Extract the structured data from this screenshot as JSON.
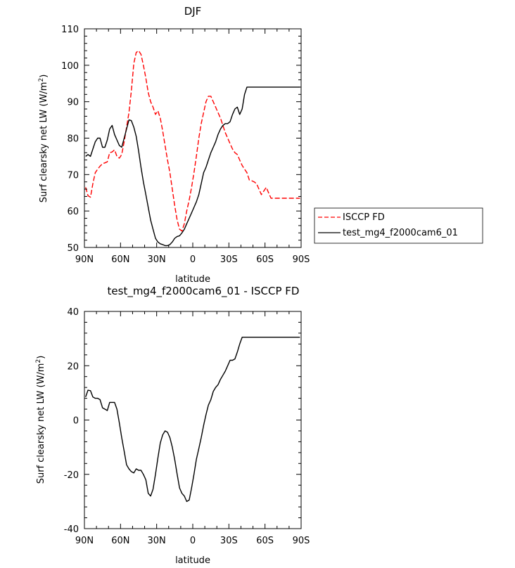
{
  "chart_data": [
    {
      "type": "line",
      "title": "DJF",
      "xlabel": "latitude",
      "ylabel": "Surf clearsky net LW (W/m",
      "ylabel_sup": "2",
      "ylabel_end": ")",
      "xlim": [
        90,
        -90
      ],
      "ylim": [
        50,
        110
      ],
      "x_ticks": [
        90,
        60,
        30,
        0,
        -30,
        -60,
        -90
      ],
      "x_tick_labels": [
        "90N",
        "60N",
        "30N",
        "0",
        "30S",
        "60S",
        "90S"
      ],
      "y_ticks": [
        50,
        60,
        70,
        80,
        90,
        100,
        110
      ],
      "y_tick_labels": [
        "50",
        "60",
        "70",
        "80",
        "90",
        "100",
        "110"
      ],
      "legend_position": "right",
      "series": [
        {
          "name": "ISCCP FD",
          "color": "#ff0000",
          "dash": "dashed",
          "x": [
            89,
            87,
            85,
            83,
            81,
            79,
            77,
            75,
            73,
            71,
            69,
            67,
            65,
            63,
            61,
            59,
            57,
            55,
            53,
            51,
            49,
            47,
            45,
            43,
            41,
            39,
            37,
            35,
            33,
            31,
            29,
            27,
            25,
            23,
            21,
            19,
            17,
            15,
            13,
            11,
            9,
            7,
            5,
            3,
            1,
            -1,
            -3,
            -5,
            -7,
            -9,
            -11,
            -13,
            -15,
            -17,
            -19,
            -21,
            -23,
            -25,
            -27,
            -29,
            -31,
            -33,
            -35,
            -37,
            -39,
            -41,
            -43,
            -45,
            -47,
            -49,
            -51,
            -53,
            -55,
            -57,
            -59,
            -61,
            -63,
            -65,
            -67,
            -69,
            -71,
            -73,
            -75,
            -77,
            -79,
            -81,
            -83,
            -85,
            -87,
            -89
          ],
          "y": [
            66.5,
            64.2,
            63.8,
            67.5,
            70.5,
            71.5,
            72.3,
            73.0,
            73.2,
            73.5,
            76.0,
            76.2,
            76.8,
            75.0,
            74.5,
            75.5,
            79.0,
            83.0,
            87.0,
            93.0,
            100.5,
            103.5,
            104.0,
            103.0,
            100.0,
            96.5,
            92.5,
            90.0,
            88.5,
            86.5,
            87.5,
            85.5,
            82.0,
            78.0,
            74.0,
            70.5,
            66.0,
            61.5,
            57.5,
            55.0,
            54.5,
            56.5,
            60.0,
            63.0,
            66.5,
            70.5,
            75.0,
            80.0,
            84.0,
            87.0,
            90.0,
            91.5,
            91.5,
            90.0,
            88.5,
            87.0,
            85.5,
            83.5,
            81.5,
            80.0,
            78.5,
            77.0,
            76.0,
            75.5,
            74.0,
            72.5,
            71.5,
            70.5,
            68.5,
            68.3,
            68.0,
            67.5,
            66.0,
            64.5,
            65.5,
            66.5,
            65.0,
            63.5,
            63.5,
            63.5,
            63.5,
            63.5,
            63.5,
            63.5,
            63.5,
            63.5,
            63.5,
            63.5,
            63.5,
            63.5
          ]
        },
        {
          "name": "test_mg4_f2000cam6_01",
          "color": "#000000",
          "dash": "solid",
          "x": [
            89,
            87,
            85,
            83,
            81,
            79,
            77,
            75,
            73,
            71,
            69,
            67,
            65,
            63,
            61,
            59,
            57,
            55,
            53,
            51,
            49,
            47,
            45,
            43,
            41,
            39,
            37,
            35,
            33,
            31,
            29,
            27,
            25,
            23,
            21,
            19,
            17,
            15,
            13,
            11,
            9,
            7,
            5,
            3,
            1,
            -1,
            -3,
            -5,
            -7,
            -9,
            -11,
            -13,
            -15,
            -17,
            -19,
            -21,
            -23,
            -25,
            -27,
            -29,
            -31,
            -33,
            -35,
            -37,
            -39,
            -41,
            -43,
            -45,
            -47,
            -49,
            -51,
            -53,
            -55,
            -57,
            -59,
            -61,
            -63,
            -65,
            -67,
            -69,
            -71,
            -73,
            -75,
            -77,
            -79,
            -81,
            -83,
            -85,
            -87,
            -89
          ],
          "y": [
            75.0,
            75.5,
            75.0,
            77.0,
            79.0,
            80.0,
            80.0,
            77.5,
            77.5,
            79.5,
            82.5,
            83.5,
            81.0,
            79.5,
            78.0,
            77.5,
            80.0,
            82.5,
            85.0,
            84.8,
            83.0,
            80.5,
            76.5,
            72.0,
            68.0,
            64.5,
            61.0,
            57.5,
            55.0,
            52.5,
            51.5,
            51.0,
            50.8,
            50.5,
            50.5,
            50.8,
            51.5,
            52.5,
            53.0,
            53.2,
            54.0,
            55.0,
            56.5,
            58.0,
            59.5,
            61.0,
            62.5,
            64.5,
            67.5,
            70.5,
            72.0,
            74.0,
            76.0,
            77.5,
            79.0,
            81.0,
            82.5,
            83.5,
            84.0,
            84.0,
            84.5,
            86.5,
            88.0,
            88.5,
            86.5,
            88.0,
            92.0,
            94.0,
            94.0,
            94.0,
            94.0,
            94.0,
            94.0,
            94.0,
            94.0,
            94.0,
            94.0,
            94.0,
            94.0,
            94.0,
            94.0,
            94.0,
            94.0,
            94.0,
            94.0,
            94.0,
            94.0,
            94.0,
            94.0,
            94.0
          ]
        }
      ]
    },
    {
      "type": "line",
      "title": "test_mg4_f2000cam6_01 - ISCCP FD",
      "xlabel": "latitude",
      "ylabel": "Surf clearsky net LW (W/m",
      "ylabel_sup": "2",
      "ylabel_end": ")",
      "xlim": [
        90,
        -90
      ],
      "ylim": [
        -40,
        40
      ],
      "x_ticks": [
        90,
        60,
        30,
        0,
        -30,
        -60,
        -90
      ],
      "x_tick_labels": [
        "90N",
        "60N",
        "30N",
        "0",
        "30S",
        "60S",
        "90S"
      ],
      "y_ticks": [
        -40,
        -20,
        0,
        20,
        40
      ],
      "y_tick_labels": [
        "-40",
        "-20",
        "0",
        "20",
        "40"
      ],
      "series": [
        {
          "color": "#000000",
          "dash": "solid",
          "x": [
            89,
            87,
            85,
            83,
            81,
            79,
            77,
            75,
            73,
            71,
            69,
            67,
            65,
            63,
            61,
            59,
            57,
            55,
            53,
            51,
            49,
            47,
            45,
            43,
            41,
            39,
            37,
            35,
            33,
            31,
            29,
            27,
            25,
            23,
            21,
            19,
            17,
            15,
            13,
            11,
            9,
            7,
            5,
            3,
            1,
            -1,
            -3,
            -5,
            -7,
            -9,
            -11,
            -13,
            -15,
            -17,
            -19,
            -21,
            -23,
            -25,
            -27,
            -29,
            -31,
            -33,
            -35,
            -37,
            -39,
            -41,
            -43,
            -45,
            -47,
            -49,
            -51,
            -53,
            -55,
            -57,
            -59,
            -61,
            -63,
            -65,
            -67,
            -69,
            -71,
            -73,
            -75,
            -77,
            -79,
            -81,
            -83,
            -85,
            -87,
            -89
          ],
          "y": [
            8.5,
            11.0,
            10.8,
            8.5,
            8.0,
            8.0,
            7.5,
            4.5,
            4.0,
            3.5,
            6.5,
            6.5,
            6.5,
            4.0,
            -1.0,
            -6.5,
            -11.5,
            -16.5,
            -18.0,
            -19.0,
            -19.5,
            -18.0,
            -18.5,
            -18.5,
            -20.0,
            -22.0,
            -27.0,
            -28.0,
            -25.5,
            -20.0,
            -14.0,
            -8.5,
            -5.5,
            -4.0,
            -4.5,
            -6.5,
            -10.0,
            -14.5,
            -20.0,
            -25.0,
            -27.0,
            -28.0,
            -30.0,
            -29.5,
            -25.0,
            -20.0,
            -14.5,
            -10.5,
            -6.5,
            -2.0,
            2.0,
            5.5,
            7.5,
            10.5,
            12.0,
            13.0,
            15.0,
            16.5,
            18.0,
            20.0,
            22.0,
            22.0,
            22.5,
            25.0,
            28.0,
            30.5,
            30.5,
            30.5,
            30.5,
            30.5,
            30.5,
            30.5,
            30.5,
            30.5,
            30.5,
            30.5,
            30.5,
            30.5,
            30.5,
            30.5,
            30.5,
            30.5,
            30.5,
            30.5,
            30.5,
            30.5,
            30.5,
            30.5,
            30.5,
            30.5
          ]
        }
      ]
    }
  ]
}
